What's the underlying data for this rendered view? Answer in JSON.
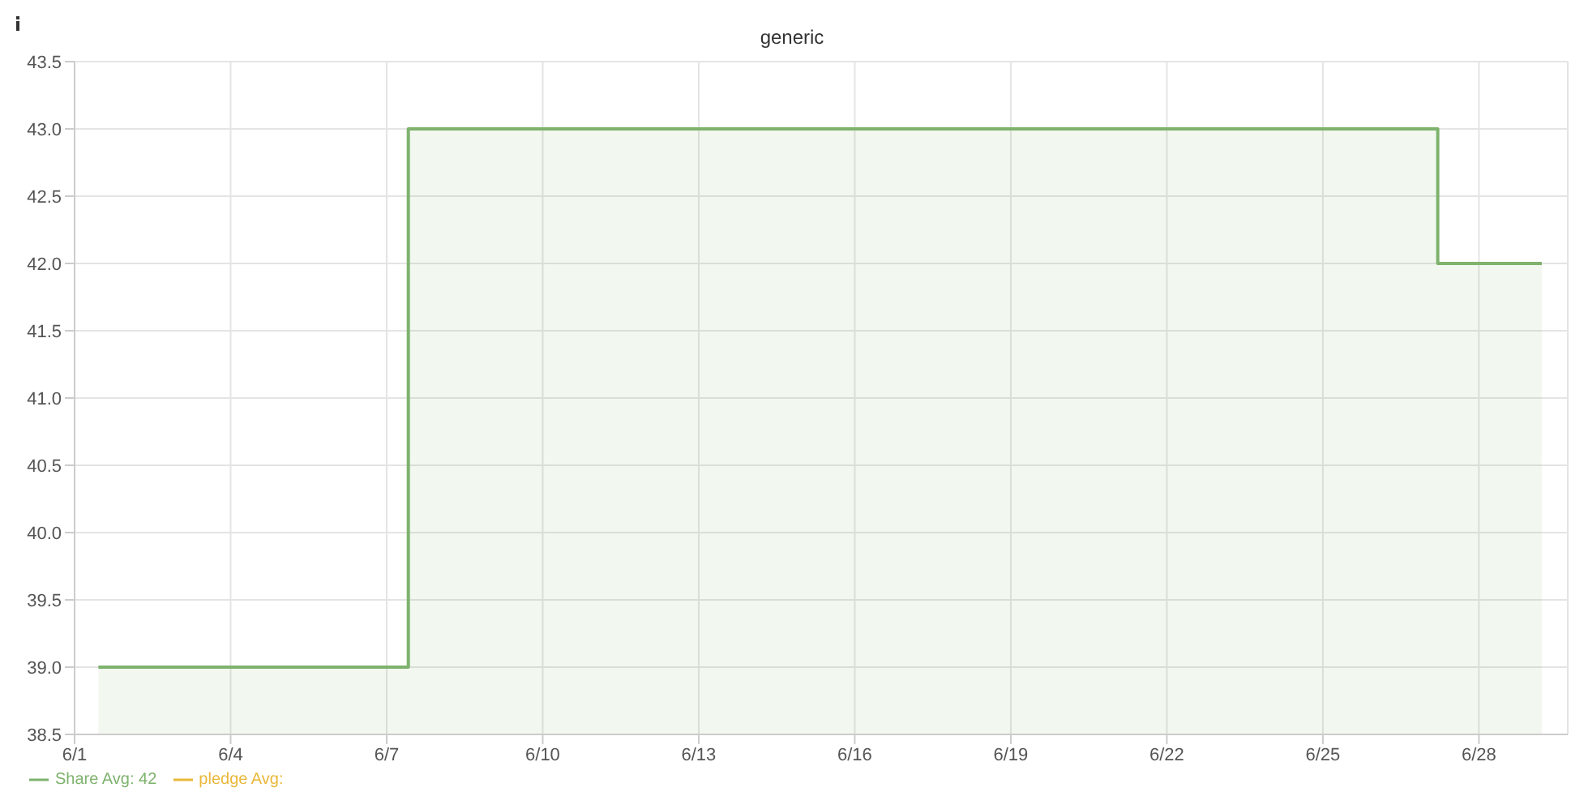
{
  "chart_data": {
    "type": "area",
    "title": "generic",
    "x": [
      "--06-01T11:00",
      "--06-07T10:00",
      "--06-07T10:00",
      "--06-27T05:00",
      "--06-27T05:00",
      "--06-29T05:00"
    ],
    "series": [
      {
        "name": "Share  Avg: 42",
        "color": "#7eb26d",
        "values": [
          39,
          39,
          43,
          43,
          42,
          42
        ]
      },
      {
        "name": "pledge  Avg:",
        "color": "#eab839",
        "values": [
          null,
          null,
          null,
          null,
          null,
          null
        ]
      }
    ],
    "xlim": [
      "--06-01",
      "--06-29T17:00"
    ],
    "xticks": [
      {
        "value": "--06-01",
        "label": "6/1"
      },
      {
        "value": "--06-04",
        "label": "6/4"
      },
      {
        "value": "--06-07",
        "label": "6/7"
      },
      {
        "value": "--06-10",
        "label": "6/10"
      },
      {
        "value": "--06-13",
        "label": "6/13"
      },
      {
        "value": "--06-16",
        "label": "6/16"
      },
      {
        "value": "--06-19",
        "label": "6/19"
      },
      {
        "value": "--06-22",
        "label": "6/22"
      },
      {
        "value": "--06-25",
        "label": "6/25"
      },
      {
        "value": "--06-28",
        "label": "6/28"
      }
    ],
    "ylim": [
      38.5,
      43.5
    ],
    "yticks": [
      38.5,
      {
        "value": 39,
        "label": "39.0"
      },
      39.5,
      {
        "value": 40,
        "label": "40.0"
      },
      40.5,
      {
        "value": 41,
        "label": "41.0"
      },
      41.5,
      {
        "value": 42,
        "label": "42.0"
      },
      42.5,
      {
        "value": 43,
        "label": "43.0"
      },
      43.5
    ],
    "grid": true,
    "legend": "bottom left",
    "marker": "none",
    "line_style": "solid"
  }
}
